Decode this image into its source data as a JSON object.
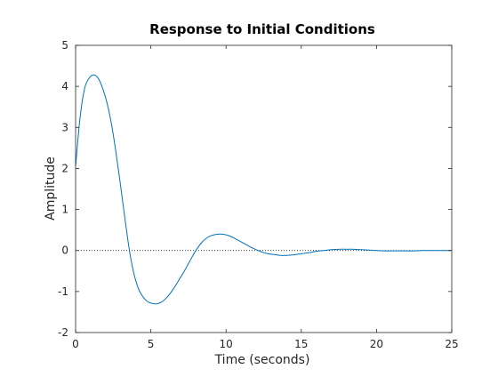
{
  "chart_data": {
    "type": "line",
    "title": "Response to Initial Conditions",
    "xlabel": "Time (seconds)",
    "ylabel": "Amplitude",
    "xlim": [
      0,
      25
    ],
    "ylim": [
      -2,
      5
    ],
    "xticks": [
      0,
      5,
      10,
      15,
      20,
      25
    ],
    "yticks": [
      -2,
      -1,
      0,
      1,
      2,
      3,
      4,
      5
    ],
    "grid": false,
    "legend": "none",
    "zero_reference_line": {
      "y": 0,
      "style": "dotted",
      "color": "#000000"
    },
    "series": [
      {
        "color": "#0072BD",
        "x": [
          0,
          0.3,
          0.6,
          0.9,
          1.2,
          1.5,
          1.8,
          2.1,
          2.4,
          2.7,
          3.0,
          3.3,
          3.6,
          3.9,
          4.2,
          4.5,
          4.8,
          5.1,
          5.4,
          5.7,
          6.0,
          6.3,
          6.6,
          6.9,
          7.2,
          7.5,
          7.8,
          8.1,
          8.4,
          8.7,
          9.0,
          9.3,
          9.6,
          9.9,
          10.2,
          10.5,
          10.8,
          11.1,
          11.4,
          11.7,
          12.0,
          12.4,
          12.8,
          13.2,
          13.6,
          14.0,
          14.4,
          14.8,
          15.2,
          15.6,
          16.0,
          16.5,
          17.0,
          17.5,
          18.0,
          18.5,
          19.0,
          19.5,
          20.0,
          20.5,
          21.0,
          21.5,
          22.0,
          22.5,
          23.0,
          23.5,
          24.0,
          24.5,
          25.0
        ],
        "y": [
          2.05,
          3.25,
          3.95,
          4.2,
          4.28,
          4.2,
          3.95,
          3.58,
          3.05,
          2.35,
          1.55,
          0.72,
          -0.05,
          -0.6,
          -0.95,
          -1.14,
          -1.25,
          -1.29,
          -1.3,
          -1.26,
          -1.17,
          -1.04,
          -0.88,
          -0.7,
          -0.52,
          -0.32,
          -0.12,
          0.06,
          0.2,
          0.3,
          0.36,
          0.39,
          0.4,
          0.39,
          0.36,
          0.31,
          0.25,
          0.19,
          0.13,
          0.07,
          0.02,
          -0.04,
          -0.08,
          -0.1,
          -0.12,
          -0.12,
          -0.11,
          -0.09,
          -0.07,
          -0.05,
          -0.02,
          0.0,
          0.02,
          0.03,
          0.03,
          0.03,
          0.02,
          0.01,
          0.0,
          -0.01,
          -0.01,
          -0.01,
          -0.01,
          -0.01,
          0.0,
          0.0,
          0.0,
          0.0,
          0.0
        ]
      }
    ]
  }
}
